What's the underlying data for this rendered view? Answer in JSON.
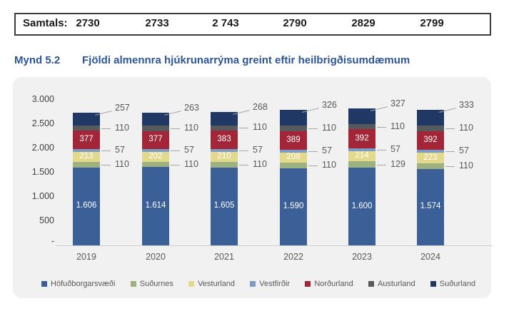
{
  "totals": {
    "label": "Samtals:",
    "values": [
      "2730",
      "2733",
      "2 743",
      "2790",
      "2829",
      "2799"
    ]
  },
  "figure": {
    "number": "Mynd 5.2",
    "title": "Fjöldi almennra hjúkrunarrýma greint eftir heilbrigðisumdæmum"
  },
  "chart_data": {
    "type": "bar",
    "stacked": true,
    "title": "Fjöldi almennra hjúkrunarrýma greint eftir heilbrigðisumdæmum",
    "categories": [
      "2019",
      "2020",
      "2021",
      "2022",
      "2023",
      "2024"
    ],
    "series": [
      {
        "name": "Höfuðborgarsvæði",
        "color": "#3a6097",
        "label_placement": "inside",
        "values": [
          1606,
          1614,
          1605,
          1590,
          1600,
          1574
        ],
        "labels": [
          "1.606",
          "1.614",
          "1.605",
          "1.590",
          "1.600",
          "1.574"
        ]
      },
      {
        "name": "Suðurnes",
        "color": "#9db27e",
        "label_placement": "callout",
        "values": [
          110,
          110,
          110,
          110,
          129,
          110
        ]
      },
      {
        "name": "Vesturland",
        "color": "#e2d98c",
        "label_placement": "inside",
        "values": [
          213,
          202,
          210,
          208,
          214,
          223
        ]
      },
      {
        "name": "Vestfirðir",
        "color": "#7b9cc7",
        "label_placement": "callout",
        "values": [
          57,
          57,
          57,
          57,
          57,
          57
        ]
      },
      {
        "name": "Norðurland",
        "color": "#a32638",
        "label_placement": "inside",
        "values": [
          377,
          377,
          383,
          389,
          392,
          392
        ]
      },
      {
        "name": "Austurland",
        "color": "#565a5c",
        "label_placement": "callout",
        "values": [
          110,
          110,
          110,
          110,
          110,
          110
        ]
      },
      {
        "name": "Suðurland",
        "color": "#1f3864",
        "label_placement": "callout-top",
        "values": [
          257,
          263,
          268,
          326,
          327,
          333
        ]
      }
    ],
    "totals": [
      2730,
      2733,
      2743,
      2790,
      2829,
      2799
    ],
    "ylim": [
      0,
      3000
    ],
    "y_ticks": [
      {
        "value": 3000,
        "label": "3.000"
      },
      {
        "value": 2500,
        "label": "2.500"
      },
      {
        "value": 2000,
        "label": "2.000"
      },
      {
        "value": 1500,
        "label": "1.500"
      },
      {
        "value": 1000,
        "label": "1.000"
      },
      {
        "value": 500,
        "label": "500"
      },
      {
        "value": 0,
        "label": "-"
      }
    ],
    "grid": false,
    "legend_position": "bottom"
  },
  "colors": {
    "title_text": "#2c5697",
    "card_background": "#f1f1f1",
    "axis_text": "#404040",
    "muted_text": "#595959",
    "baseline": "#cfcfcf",
    "totals_border": "#3c3c3c"
  }
}
